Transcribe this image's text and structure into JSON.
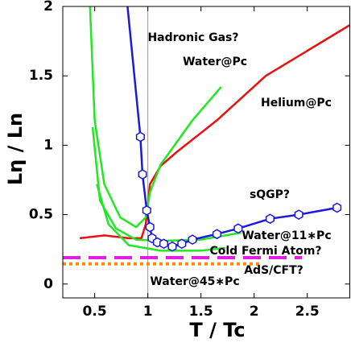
{
  "chart_data": {
    "type": "line",
    "xlabel": "T / Tc",
    "ylabel": "Lη / Ln",
    "xlim": [
      0.2,
      2.9
    ],
    "ylim": [
      -0.1,
      2.0
    ],
    "xticks": [
      0.5,
      1,
      1.5,
      2,
      2.5
    ],
    "yticks": [
      0,
      0.5,
      1,
      1.5,
      2
    ],
    "vline": 1,
    "series": [
      {
        "color": "#e81010",
        "x": [
          0.36,
          0.59,
          0.82,
          0.94,
          0.98,
          1.02,
          1.12,
          1.27,
          1.65,
          2.11,
          2.91
        ],
        "values": [
          0.33,
          0.35,
          0.33,
          0.33,
          0.43,
          0.72,
          0.85,
          0.95,
          1.18,
          1.5,
          1.87
        ]
      },
      {
        "color": "#22e822",
        "x": [
          0.455,
          0.5,
          0.59,
          0.74,
          0.89,
          0.98,
          1.02,
          1.12,
          1.42,
          1.69
        ],
        "values": [
          2.01,
          1.18,
          0.72,
          0.48,
          0.41,
          0.48,
          0.66,
          0.86,
          1.18,
          1.42
        ]
      },
      {
        "color": "#22e822",
        "x": [
          0.48,
          0.55,
          0.7,
          0.89,
          1.12,
          1.5,
          1.88
        ],
        "values": [
          1.13,
          0.6,
          0.4,
          0.32,
          0.31,
          0.32,
          0.37
        ]
      },
      {
        "color": "#22e822",
        "x": [
          0.52,
          0.63,
          0.82,
          1.12,
          1.5,
          1.73
        ],
        "values": [
          0.72,
          0.43,
          0.28,
          0.24,
          0.24,
          0.26
        ]
      },
      {
        "color": "#e020e0",
        "dash": "22 10",
        "x": [
          0.2,
          2.45
        ],
        "values": [
          0.19,
          0.19
        ]
      },
      {
        "color": "#ff8c00",
        "dash": "4 4",
        "x": [
          0.2,
          2.05
        ],
        "values": [
          0.145,
          0.145
        ]
      },
      {
        "color": "#1a1adc",
        "markers": true,
        "x": [
          0.77,
          0.93,
          0.95,
          0.99,
          1.02,
          1.04,
          1.09,
          1.15,
          1.23,
          1.32,
          1.42,
          1.65,
          1.85,
          2.15,
          2.42,
          2.78
        ],
        "values": [
          2.3,
          1.06,
          0.79,
          0.53,
          0.41,
          0.33,
          0.3,
          0.29,
          0.27,
          0.29,
          0.32,
          0.36,
          0.4,
          0.47,
          0.5,
          0.55
        ]
      }
    ],
    "annotations": [
      "Hadronic Gas?",
      "Water@Pc",
      "Helium@Pc",
      "sQGP?",
      "Water@11∗Pc",
      "Cold Fermi Atom?",
      "AdS/CFT?",
      "Water@45∗Pc"
    ]
  }
}
